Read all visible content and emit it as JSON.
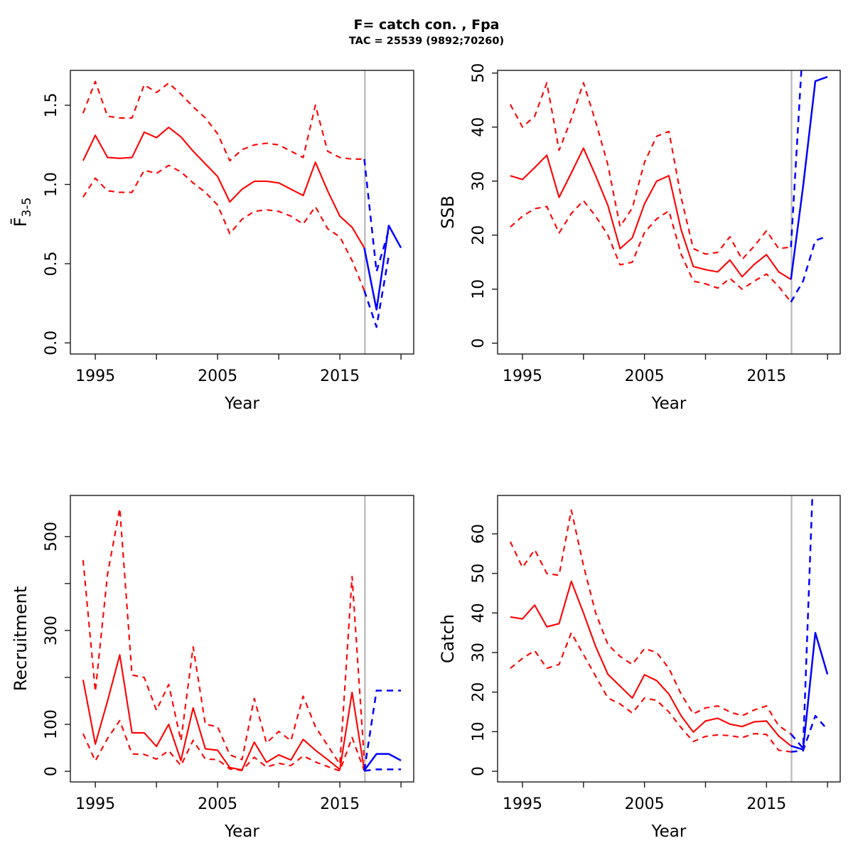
{
  "chart_data": {
    "type": "line",
    "title": "F= catch con. , Fpa",
    "subtitle": "TAC = 25539 (9892;70260)",
    "legend": "none",
    "grid": false,
    "colors": {
      "historical": "#ff0000",
      "forecast": "#0000ff",
      "divider": "#bdbdbd",
      "axis": "#000000"
    },
    "x_axis": {
      "label": "Year",
      "xlim": [
        1992.96,
        2021.04
      ],
      "ticks": [
        1995,
        2000,
        2005,
        2010,
        2015,
        2020
      ],
      "tick_labels": [
        "1995",
        "",
        "2005",
        "",
        "2015",
        ""
      ]
    },
    "forecast_divider_x": 2017.05,
    "years_historical": [
      1994,
      1995,
      1996,
      1997,
      1998,
      1999,
      2000,
      2001,
      2002,
      2003,
      2004,
      2005,
      2006,
      2007,
      2008,
      2009,
      2010,
      2011,
      2012,
      2013,
      2014,
      2015,
      2016,
      2017
    ],
    "years_forecast": [
      2017,
      2018,
      2019,
      2020
    ],
    "panels": [
      {
        "id": "f",
        "ylabel": {
          "main": "F̄",
          "sub": "3-5"
        },
        "ylim": [
          -0.07,
          1.72
        ],
        "yticks": [
          0,
          0.5,
          1,
          1.5
        ],
        "ytick_labels": [
          "0.0",
          "0.5",
          "1.0",
          "1.5"
        ],
        "historical": {
          "median": [
            1.15,
            1.31,
            1.17,
            1.165,
            1.17,
            1.33,
            1.295,
            1.36,
            1.3,
            1.21,
            1.13,
            1.05,
            0.89,
            0.97,
            1.02,
            1.02,
            1.01,
            0.97,
            0.93,
            1.14,
            0.96,
            0.8,
            0.73,
            0.6
          ],
          "upper": [
            1.45,
            1.65,
            1.43,
            1.42,
            1.42,
            1.63,
            1.58,
            1.64,
            1.57,
            1.49,
            1.42,
            1.32,
            1.15,
            1.22,
            1.25,
            1.26,
            1.25,
            1.21,
            1.17,
            1.5,
            1.21,
            1.17,
            1.16,
            1.16
          ],
          "lower": [
            0.92,
            1.04,
            0.96,
            0.95,
            0.95,
            1.09,
            1.07,
            1.12,
            1.08,
            1.01,
            0.95,
            0.87,
            0.69,
            0.78,
            0.83,
            0.84,
            0.83,
            0.8,
            0.75,
            0.86,
            0.72,
            0.67,
            0.52,
            0.33
          ]
        },
        "forecast": {
          "median": [
            0.6,
            0.21,
            0.74,
            0.6
          ],
          "upper": [
            1.16,
            0.45,
            0.71
          ],
          "upper_years": [
            2017,
            2018,
            2019
          ],
          "lower": [
            0.33,
            0.1,
            0.55
          ],
          "lower_years": [
            2017,
            2018,
            2019
          ]
        }
      },
      {
        "id": "ssb",
        "ylabel": {
          "main": "SSB",
          "sub": ""
        },
        "ylim": [
          -2.0,
          50.5
        ],
        "yticks": [
          0,
          10,
          20,
          30,
          40,
          50
        ],
        "ytick_labels": [
          "0",
          "10",
          "20",
          "30",
          "40",
          "50"
        ],
        "historical": {
          "median": [
            31,
            30.3,
            32.5,
            34.8,
            27,
            31.5,
            36.1,
            31,
            25.5,
            17.5,
            19.5,
            25.8,
            30,
            31,
            21,
            14.2,
            13.6,
            13.2,
            15.4,
            12.3,
            14.6,
            16.4,
            13.2,
            11.8
          ],
          "upper": [
            44.2,
            40,
            42,
            48.2,
            35.7,
            41.5,
            48.2,
            41,
            33,
            21.6,
            25,
            33.5,
            38.3,
            39.2,
            27,
            17.5,
            16.5,
            16.8,
            19.7,
            15.5,
            18,
            20.8,
            17.5,
            17.8
          ],
          "lower": [
            21.5,
            23.5,
            24.9,
            25.3,
            20.4,
            24,
            26.4,
            23.5,
            20,
            14.5,
            15,
            20.5,
            23,
            24.5,
            16.5,
            11.5,
            11,
            10.2,
            12,
            10,
            11.5,
            12.8,
            10.5,
            7.6
          ]
        },
        "forecast": {
          "median": [
            11.8,
            29,
            48.5,
            49.3
          ],
          "upper": [
            17.8,
            56
          ],
          "upper_years": [
            2017,
            2018
          ],
          "lower": [
            7.6,
            11.5,
            19,
            19.8
          ],
          "lower_years": [
            2017,
            2018,
            2019,
            2020
          ]
        }
      },
      {
        "id": "recruitment",
        "ylabel": {
          "main": "Recruitment",
          "sub": ""
        },
        "ylim": [
          -22.6,
          587.6
        ],
        "yticks": [
          0,
          100,
          200,
          300,
          400,
          500
        ],
        "ytick_labels": [
          "0",
          "100",
          "",
          "300",
          "",
          "500"
        ],
        "historical": {
          "median": [
            195,
            58,
            150,
            248,
            82,
            82,
            53,
            100,
            23,
            135,
            48,
            45,
            8,
            3,
            62,
            19,
            35,
            24,
            68,
            45,
            25,
            4,
            168,
            2
          ],
          "upper": [
            450,
            170,
            420,
            560,
            205,
            200,
            130,
            185,
            65,
            265,
            100,
            95,
            35,
            25,
            155,
            60,
            85,
            65,
            160,
            95,
            55,
            15,
            415,
            22
          ],
          "lower": [
            80,
            22,
            70,
            108,
            37,
            36,
            26,
            44,
            12,
            66,
            26,
            25,
            5,
            2,
            30,
            9,
            17,
            12,
            33,
            20,
            10,
            1,
            72,
            1
          ]
        },
        "forecast": {
          "median": [
            2,
            37,
            37,
            23
          ],
          "upper": [
            2,
            172,
            172,
            172
          ],
          "upper_years": [
            2017,
            2018,
            2019,
            2020
          ],
          "lower": [
            1,
            4,
            4,
            4
          ],
          "lower_years": [
            2017,
            2018,
            2019,
            2020
          ]
        }
      },
      {
        "id": "catch",
        "ylabel": {
          "main": "Catch",
          "sub": ""
        },
        "ylim": [
          -2.7,
          69.7
        ],
        "yticks": [
          0,
          10,
          20,
          30,
          40,
          50,
          60
        ],
        "ytick_labels": [
          "0",
          "10",
          "20",
          "30",
          "40",
          "50",
          "60"
        ],
        "historical": {
          "median": [
            39,
            38.5,
            42,
            36.5,
            37.3,
            48,
            40,
            31.5,
            24.5,
            21.5,
            18.5,
            24.4,
            22.9,
            19.5,
            14,
            9.9,
            12.7,
            13.4,
            11.9,
            11.3,
            12.5,
            12.7,
            8.9,
            6.4
          ],
          "upper": [
            58,
            51.5,
            56,
            50,
            49.5,
            66,
            52,
            40,
            32,
            29,
            27,
            31,
            30,
            26,
            19.5,
            14.5,
            16,
            16.5,
            15,
            14,
            15.5,
            16.5,
            11.5,
            9.4
          ],
          "lower": [
            26,
            28.5,
            30.5,
            26,
            27,
            35,
            29.5,
            24,
            18.5,
            17,
            14.7,
            18.5,
            17.9,
            15,
            11,
            7.5,
            8.8,
            9.2,
            9,
            8.5,
            9.5,
            9.3,
            5.3,
            4.9
          ]
        },
        "forecast": {
          "median": [
            6.4,
            5.5,
            35,
            24.5
          ],
          "upper": [
            9.4,
            5.8,
            90
          ],
          "upper_years": [
            2017,
            2018,
            2019
          ],
          "lower": [
            4.9,
            5.2,
            14,
            10.5
          ],
          "lower_years": [
            2017,
            2018,
            2019,
            2020
          ]
        }
      }
    ]
  }
}
